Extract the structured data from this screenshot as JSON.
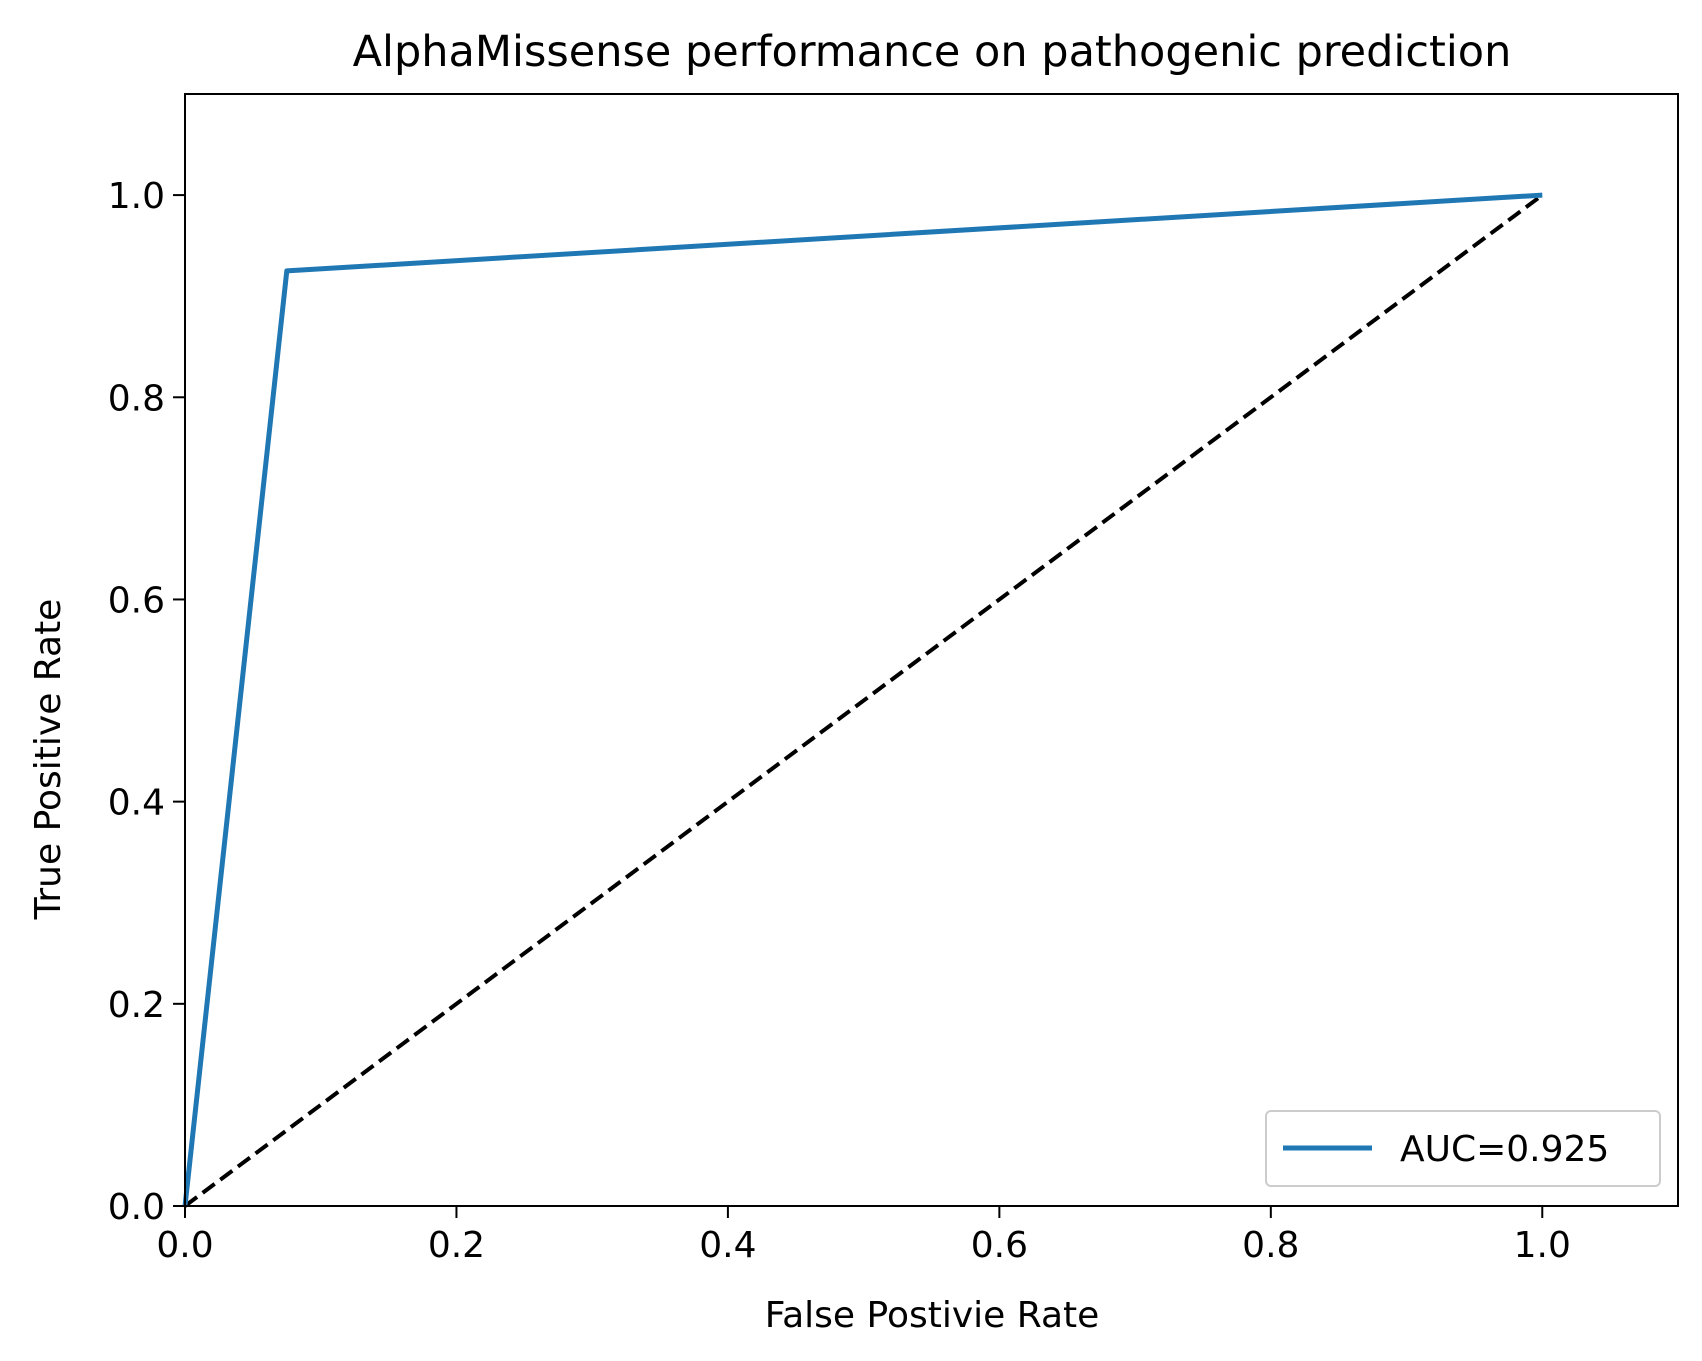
{
  "chart_data": {
    "type": "line",
    "title": "AlphaMissense performance on pathogenic prediction",
    "xlabel": "False Postivie Rate",
    "ylabel": "True Positive Rate",
    "xlim": [
      0,
      1.1
    ],
    "ylim": [
      0,
      1.1
    ],
    "xticks": [
      0.0,
      0.2,
      0.4,
      0.6,
      0.8,
      1.0
    ],
    "yticks": [
      0.0,
      0.2,
      0.4,
      0.6,
      0.8,
      1.0
    ],
    "xtick_labels": [
      "0.0",
      "0.2",
      "0.4",
      "0.6",
      "0.8",
      "1.0"
    ],
    "ytick_labels": [
      "0.0",
      "0.2",
      "0.4",
      "0.6",
      "0.8",
      "1.0"
    ],
    "grid": false,
    "legend_position": "lower-right",
    "series": [
      {
        "name": "AUC=0.925",
        "color": "#1f77b4",
        "style": "solid",
        "x": [
          0.0,
          0.075,
          1.0
        ],
        "y": [
          0.0,
          0.925,
          1.0
        ]
      },
      {
        "color": "#000000",
        "style": "dashed",
        "x": [
          0.0,
          1.0
        ],
        "y": [
          0.0,
          1.0
        ]
      }
    ]
  }
}
